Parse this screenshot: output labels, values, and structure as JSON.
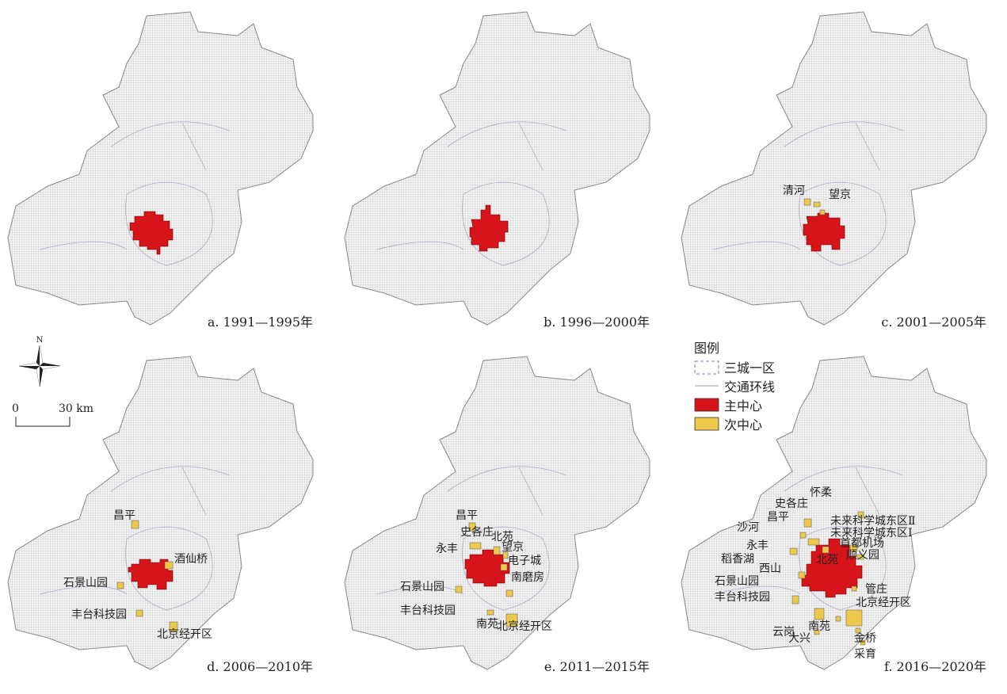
{
  "colors": {
    "main_center": "#d7141a",
    "sub_center": "#ecc94b",
    "map_fill": "#e4e4e4",
    "ring_road": "#b6a8c9",
    "boundary": "#8a6fa8"
  },
  "legend": {
    "title": "图例",
    "items": [
      "三城一区",
      "交通环线",
      "主中心",
      "次中心"
    ]
  },
  "north_arrow": "N",
  "scale_bar": {
    "start": "0",
    "end": "30 km"
  },
  "panels": [
    {
      "caption": "a. 1991—1995年",
      "labels": []
    },
    {
      "caption": "b. 1996—2000年",
      "labels": []
    },
    {
      "caption": "c. 2001—2005年",
      "labels": [
        "清河",
        "望京"
      ]
    },
    {
      "caption": "d. 2006—2010年",
      "labels": [
        "昌平",
        "酒仙桥",
        "石景山园",
        "丰台科技园",
        "北京经开区"
      ]
    },
    {
      "caption": "e. 2011—2015年",
      "labels": [
        "昌平",
        "史各庄",
        "永丰",
        "北苑",
        "望京",
        "电子城",
        "石景山园",
        "南磨房",
        "丰台科技园",
        "南苑",
        "北京经开区"
      ]
    },
    {
      "caption": "f. 2016—2020年",
      "labels": [
        "怀柔",
        "史各庄",
        "昌平",
        "未来科学城东区Ⅱ",
        "沙河",
        "未来科学城东区Ⅰ",
        "首都机场",
        "永丰",
        "顺义园",
        "稻香湖",
        "北苑",
        "西山",
        "石景山园",
        "管庄",
        "丰台科技园",
        "北京经开区",
        "云岗",
        "南苑",
        "金桥",
        "大兴",
        "采育"
      ]
    }
  ]
}
